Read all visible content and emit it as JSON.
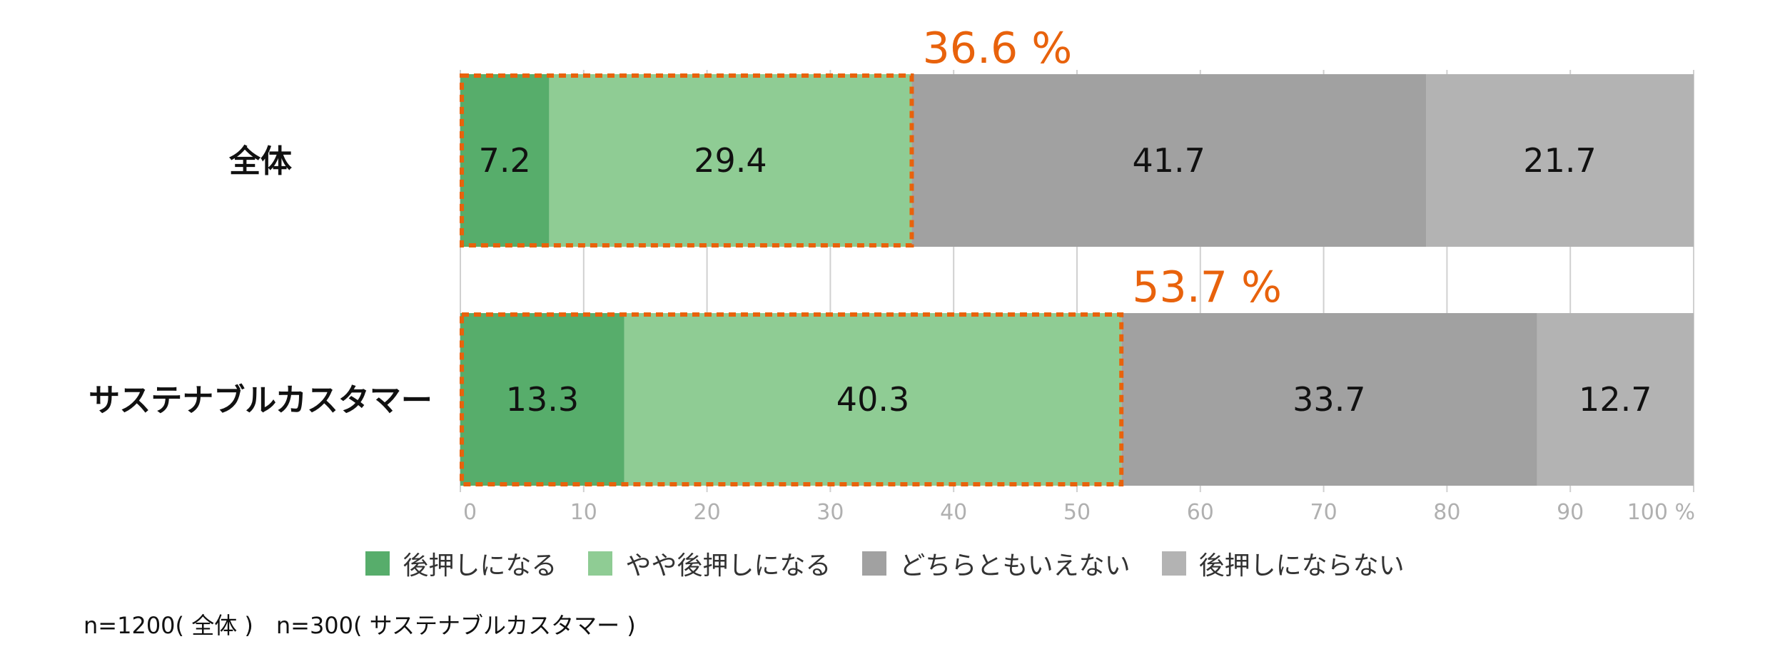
{
  "chart_data": {
    "type": "bar",
    "orientation": "horizontal",
    "stacked": true,
    "categories": [
      "全体",
      "サステナブルカスタマー"
    ],
    "series": [
      {
        "name": "後押しになる",
        "values": [
          7.2,
          13.3
        ],
        "color": "#57ad6b"
      },
      {
        "name": "やや後押しになる",
        "values": [
          29.4,
          40.3
        ],
        "color": "#8fcc94"
      },
      {
        "name": "どちらともいえない",
        "values": [
          41.7,
          33.7
        ],
        "color": "#a1a1a1"
      },
      {
        "name": "後押しにならない",
        "values": [
          21.7,
          12.7
        ],
        "color": "#b3b3b3"
      }
    ],
    "xlim": [
      0,
      100
    ],
    "x_ticks": [
      "0",
      "10",
      "20",
      "30",
      "40",
      "50",
      "60",
      "70",
      "80",
      "90",
      "100 %"
    ],
    "callouts": [
      "36.6 %",
      "53.7 %"
    ],
    "callout_color": "#e8620c",
    "grid": true,
    "legend_position": "bottom"
  },
  "note": "n=1200( 全体 )　n=300( サステナブルカスタマー )"
}
